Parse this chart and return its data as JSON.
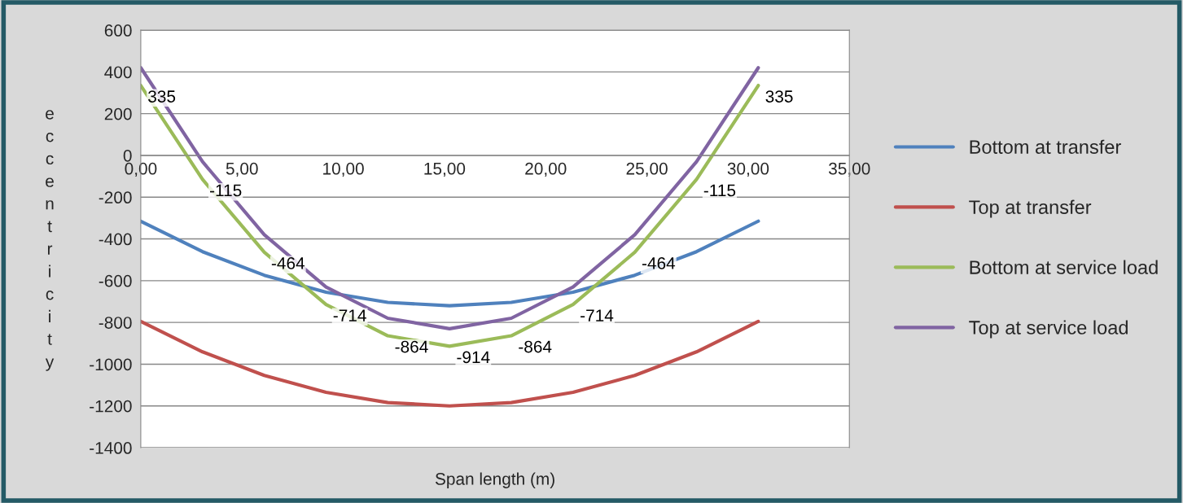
{
  "chart_data": {
    "type": "line",
    "xlabel": "Span length (m)",
    "ylabel": "eccentricity",
    "x": [
      0,
      3.05,
      6.1,
      9.15,
      12.2,
      15.25,
      18.3,
      21.35,
      24.4,
      27.45,
      30.5
    ],
    "series": [
      {
        "name": "Bottom at transfer",
        "color": "#4f81bd",
        "values": [
          -315,
          -461,
          -574,
          -655,
          -704,
          -720,
          -704,
          -655,
          -574,
          -461,
          -315
        ]
      },
      {
        "name": "Top at transfer",
        "color": "#c0504d",
        "values": [
          -795,
          -941,
          -1054,
          -1135,
          -1184,
          -1200,
          -1184,
          -1135,
          -1054,
          -941,
          -795
        ]
      },
      {
        "name": "Bottom at service load",
        "color": "#9bbb59",
        "values": [
          335,
          -115,
          -464,
          -714,
          -864,
          -914,
          -864,
          -714,
          -464,
          -115,
          335
        ],
        "value_labels": [
          "335",
          "-115",
          "-464",
          "-714",
          "-864",
          "-914",
          "-864",
          "-714",
          "-464",
          "-115",
          "335"
        ]
      },
      {
        "name": "Top at service load",
        "color": "#8064a2",
        "values": [
          420,
          -30,
          -380,
          -630,
          -780,
          -830,
          -780,
          -630,
          -380,
          -30,
          420
        ]
      }
    ],
    "xlim": [
      0,
      35
    ],
    "xticks": [
      {
        "value": 0,
        "label": "0,00"
      },
      {
        "value": 5,
        "label": "5,00"
      },
      {
        "value": 10,
        "label": "10,00"
      },
      {
        "value": 15,
        "label": "15,00"
      },
      {
        "value": 20,
        "label": "20,00"
      },
      {
        "value": 25,
        "label": "25,00"
      },
      {
        "value": 30,
        "label": "30,00"
      },
      {
        "value": 35,
        "label": "35,00"
      }
    ],
    "ylim": [
      -1400,
      600
    ],
    "yticks": [
      -1400,
      -1200,
      -1000,
      -800,
      -600,
      -400,
      -200,
      0,
      200,
      400,
      600
    ],
    "grid": "y",
    "legend": "right",
    "marker": "none",
    "line_style": "solid"
  }
}
